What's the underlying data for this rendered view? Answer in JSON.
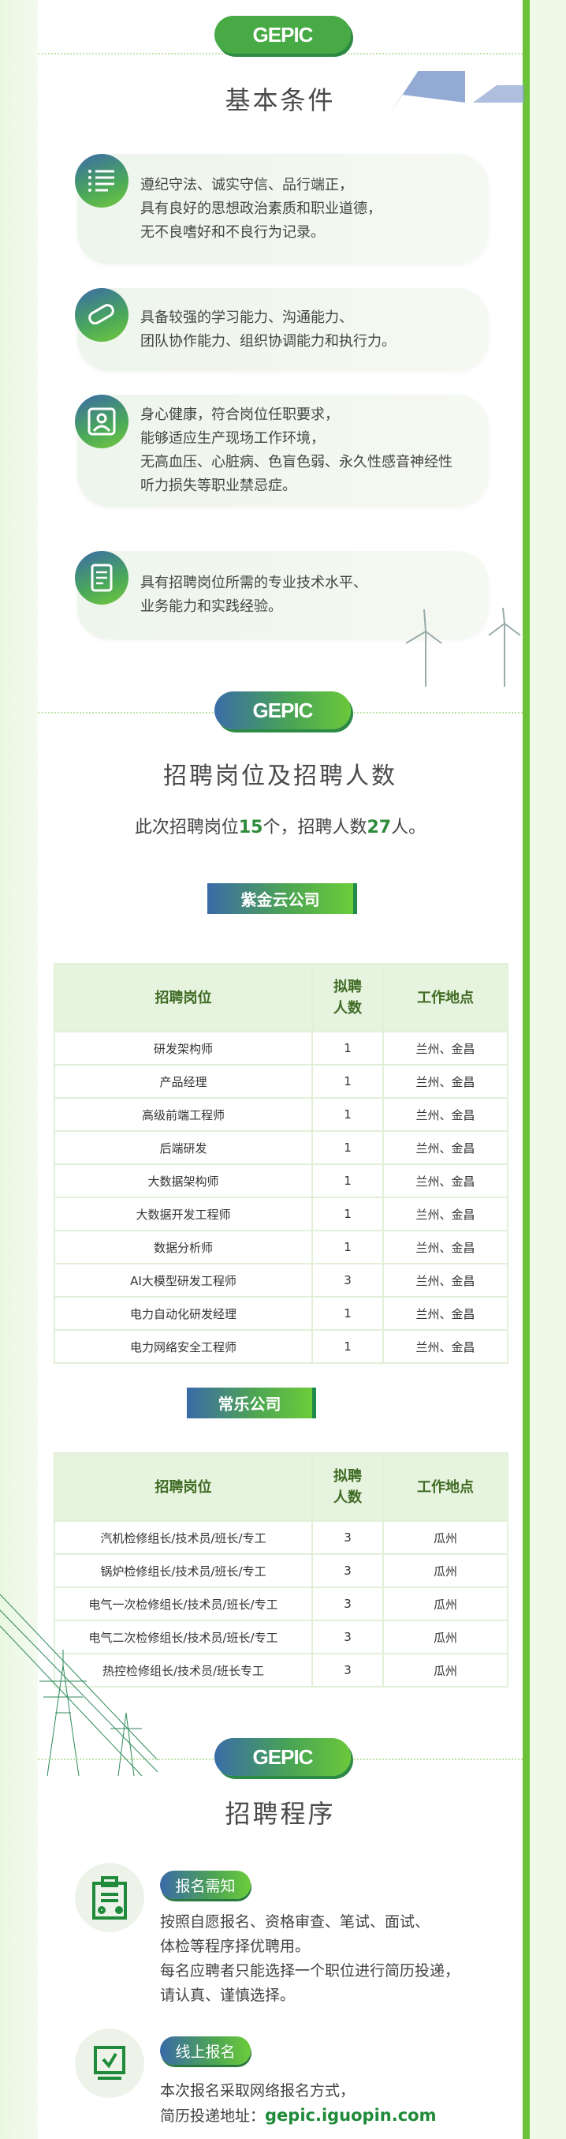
{
  "brand": "GEPIC",
  "colors": {
    "accent": "#47aa45",
    "border": "#6cc23a",
    "header_text": "#3f6b24",
    "highlight": "#2e8b3a"
  },
  "section1": {
    "title": "基本条件",
    "items": [
      {
        "icon": "checklist-icon",
        "lines": [
          "遵纪守法、诚实守信、品行端正，",
          "具有良好的思想政治素质和职业道德，",
          "无不良嗜好和不良行为记录。"
        ]
      },
      {
        "icon": "diploma-scroll-icon",
        "lines": [
          "具备较强的学习能力、沟通能力、",
          "团队协作能力、组织协调能力和执行力。"
        ]
      },
      {
        "icon": "health-person-icon",
        "lines": [
          "身心健康，符合岗位任职要求，",
          "能够适应生产现场工作环境，",
          "无高血压、心脏病、色盲色弱、永久性感音神经性",
          "听力损失等职业禁忌症。"
        ]
      },
      {
        "icon": "document-edit-icon",
        "lines": [
          "具有招聘岗位所需的专业技术水平、",
          "业务能力和实践经验。"
        ]
      }
    ]
  },
  "section2": {
    "title": "招聘岗位及招聘人数",
    "summary": {
      "pre": "此次招聘岗位",
      "positions": "15",
      "mid": "个，招聘人数",
      "people": "27",
      "post": "人。"
    },
    "headers": [
      "招聘岗位",
      "拟聘人数",
      "工作地点"
    ],
    "companies": [
      {
        "name": "紫金云公司",
        "rows": [
          [
            "研发架构师",
            "1",
            "兰州、金昌"
          ],
          [
            "产品经理",
            "1",
            "兰州、金昌"
          ],
          [
            "高级前端工程师",
            "1",
            "兰州、金昌"
          ],
          [
            "后端研发",
            "1",
            "兰州、金昌"
          ],
          [
            "大数据架构师",
            "1",
            "兰州、金昌"
          ],
          [
            "大数据开发工程师",
            "1",
            "兰州、金昌"
          ],
          [
            "数据分析师",
            "1",
            "兰州、金昌"
          ],
          [
            "AI大模型研发工程师",
            "3",
            "兰州、金昌"
          ],
          [
            "电力自动化研发经理",
            "1",
            "兰州、金昌"
          ],
          [
            "电力网络安全工程师",
            "1",
            "兰州、金昌"
          ]
        ]
      },
      {
        "name": "常乐公司",
        "rows": [
          [
            "汽机检修组长/技术员/班长/专工",
            "3",
            "瓜州"
          ],
          [
            "锅炉检修组长/技术员/班长/专工",
            "3",
            "瓜州"
          ],
          [
            "电气一次检修组长/技术员/班长/专工",
            "3",
            "瓜州"
          ],
          [
            "电气二次检修组长/技术员/班长/专工",
            "3",
            "瓜州"
          ],
          [
            "热控检修组长/技术员/班长专工",
            "3",
            "瓜州"
          ]
        ]
      }
    ]
  },
  "section3": {
    "title": "招聘程序",
    "steps": [
      {
        "icon": "registration-form-icon",
        "label": "报名需知",
        "lines": [
          "按照自愿报名、资格审查、笔试、面试、",
          "体检等程序择优聘用。",
          "每名应聘者只能选择一个职位进行简历投递，",
          "请认真、谨慎选择。"
        ]
      },
      {
        "icon": "checkbox-monitor-icon",
        "label": "线上报名",
        "lines": [
          "本次报名采取网络报名方式，"
        ],
        "url_label": "简历投递地址：",
        "url": "gepic.iguopin.com"
      }
    ]
  }
}
